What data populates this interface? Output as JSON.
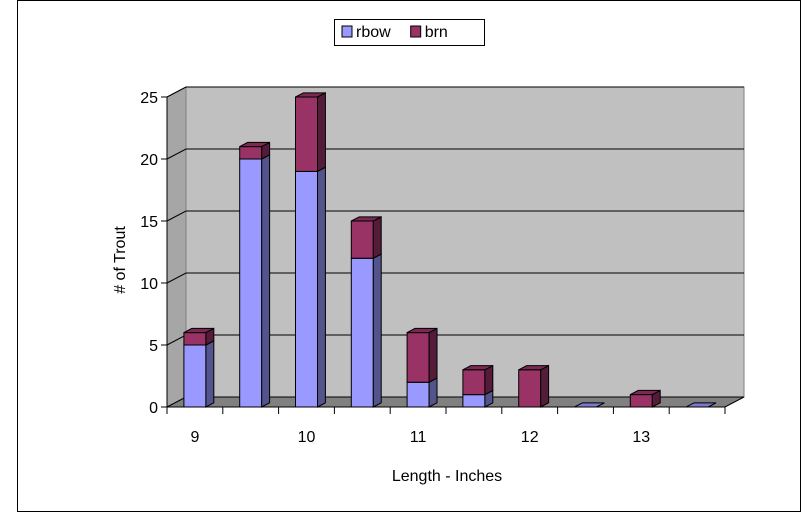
{
  "chart_data": {
    "type": "bar",
    "stacked": true,
    "style": "3d-column",
    "categories": [
      "9",
      "9.5",
      "10",
      "10.5",
      "11",
      "11.5",
      "12",
      "12.5",
      "13",
      "13.5"
    ],
    "x_tick_labels": [
      "9",
      "10",
      "11",
      "12",
      "13"
    ],
    "series": [
      {
        "name": "rbow",
        "color": "#9999ff",
        "values": [
          5,
          20,
          19,
          12,
          2,
          1,
          0,
          0,
          0,
          0
        ]
      },
      {
        "name": "brn",
        "color": "#993366",
        "values": [
          1,
          1,
          6,
          3,
          4,
          2,
          3,
          0,
          1,
          0
        ]
      }
    ],
    "xlabel": "Length - Inches",
    "ylabel": "# of Trout",
    "ylim": [
      0,
      25
    ],
    "yticks": [
      0,
      5,
      10,
      15,
      20,
      25
    ],
    "grid": true,
    "legend": "top-center",
    "plot_background": "#c0c0c0"
  }
}
